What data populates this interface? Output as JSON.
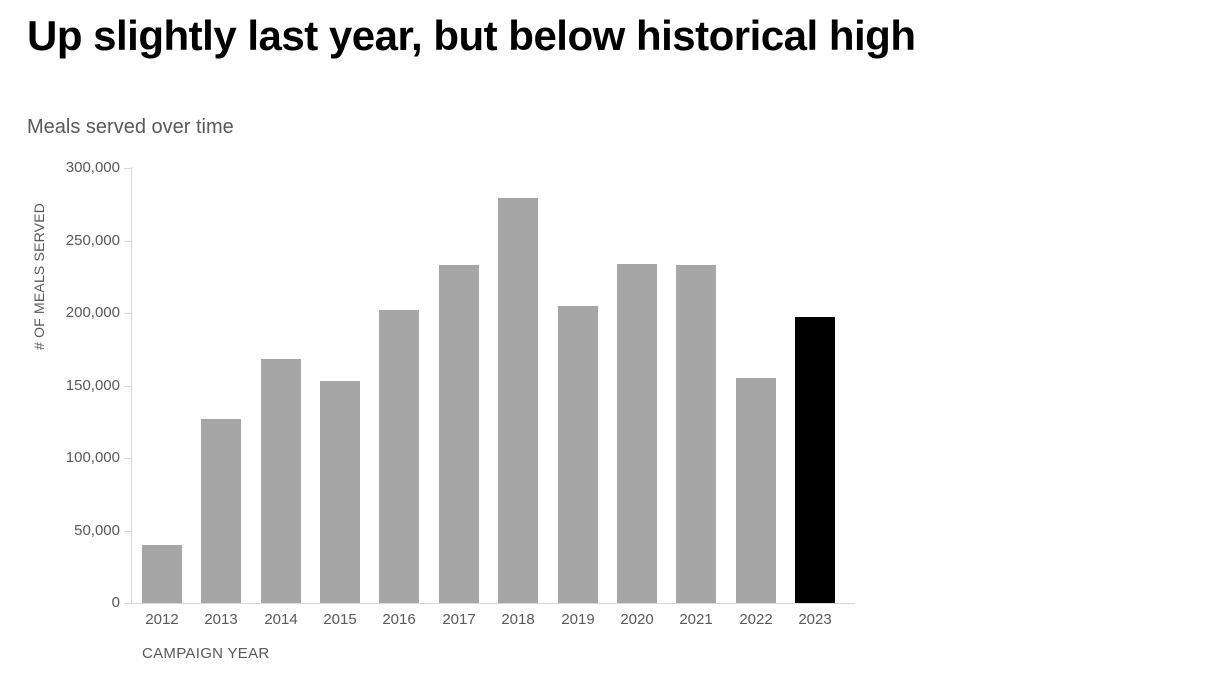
{
  "page": {
    "title": "Up slightly last year, but below historical high",
    "subtitle": "Meals served over time"
  },
  "colors": {
    "title_text": "#000000",
    "gray_text": "#595959",
    "axis_line": "#D9D9D9",
    "bar": "#A6A6A6",
    "bar_highlight": "#000000",
    "background": "#FFFFFF"
  },
  "chart_data": {
    "type": "bar",
    "title": "Meals served over time",
    "categories": [
      "2012",
      "2013",
      "2014",
      "2015",
      "2016",
      "2017",
      "2018",
      "2019",
      "2020",
      "2021",
      "2022",
      "2023"
    ],
    "values": [
      40000,
      127000,
      168000,
      153000,
      202000,
      233000,
      279000,
      205000,
      234000,
      233000,
      155000,
      197000
    ],
    "highlight_index": 11,
    "xlabel": "CAMPAIGN YEAR",
    "ylabel": "# OF MEALS SERVED",
    "ylim": [
      0,
      300000
    ],
    "ytick_step": 50000,
    "ytick_labels": [
      "0",
      "50,000",
      "100,000",
      "150,000",
      "200,000",
      "250,000",
      "300,000"
    ],
    "grid": false,
    "legend": false
  }
}
